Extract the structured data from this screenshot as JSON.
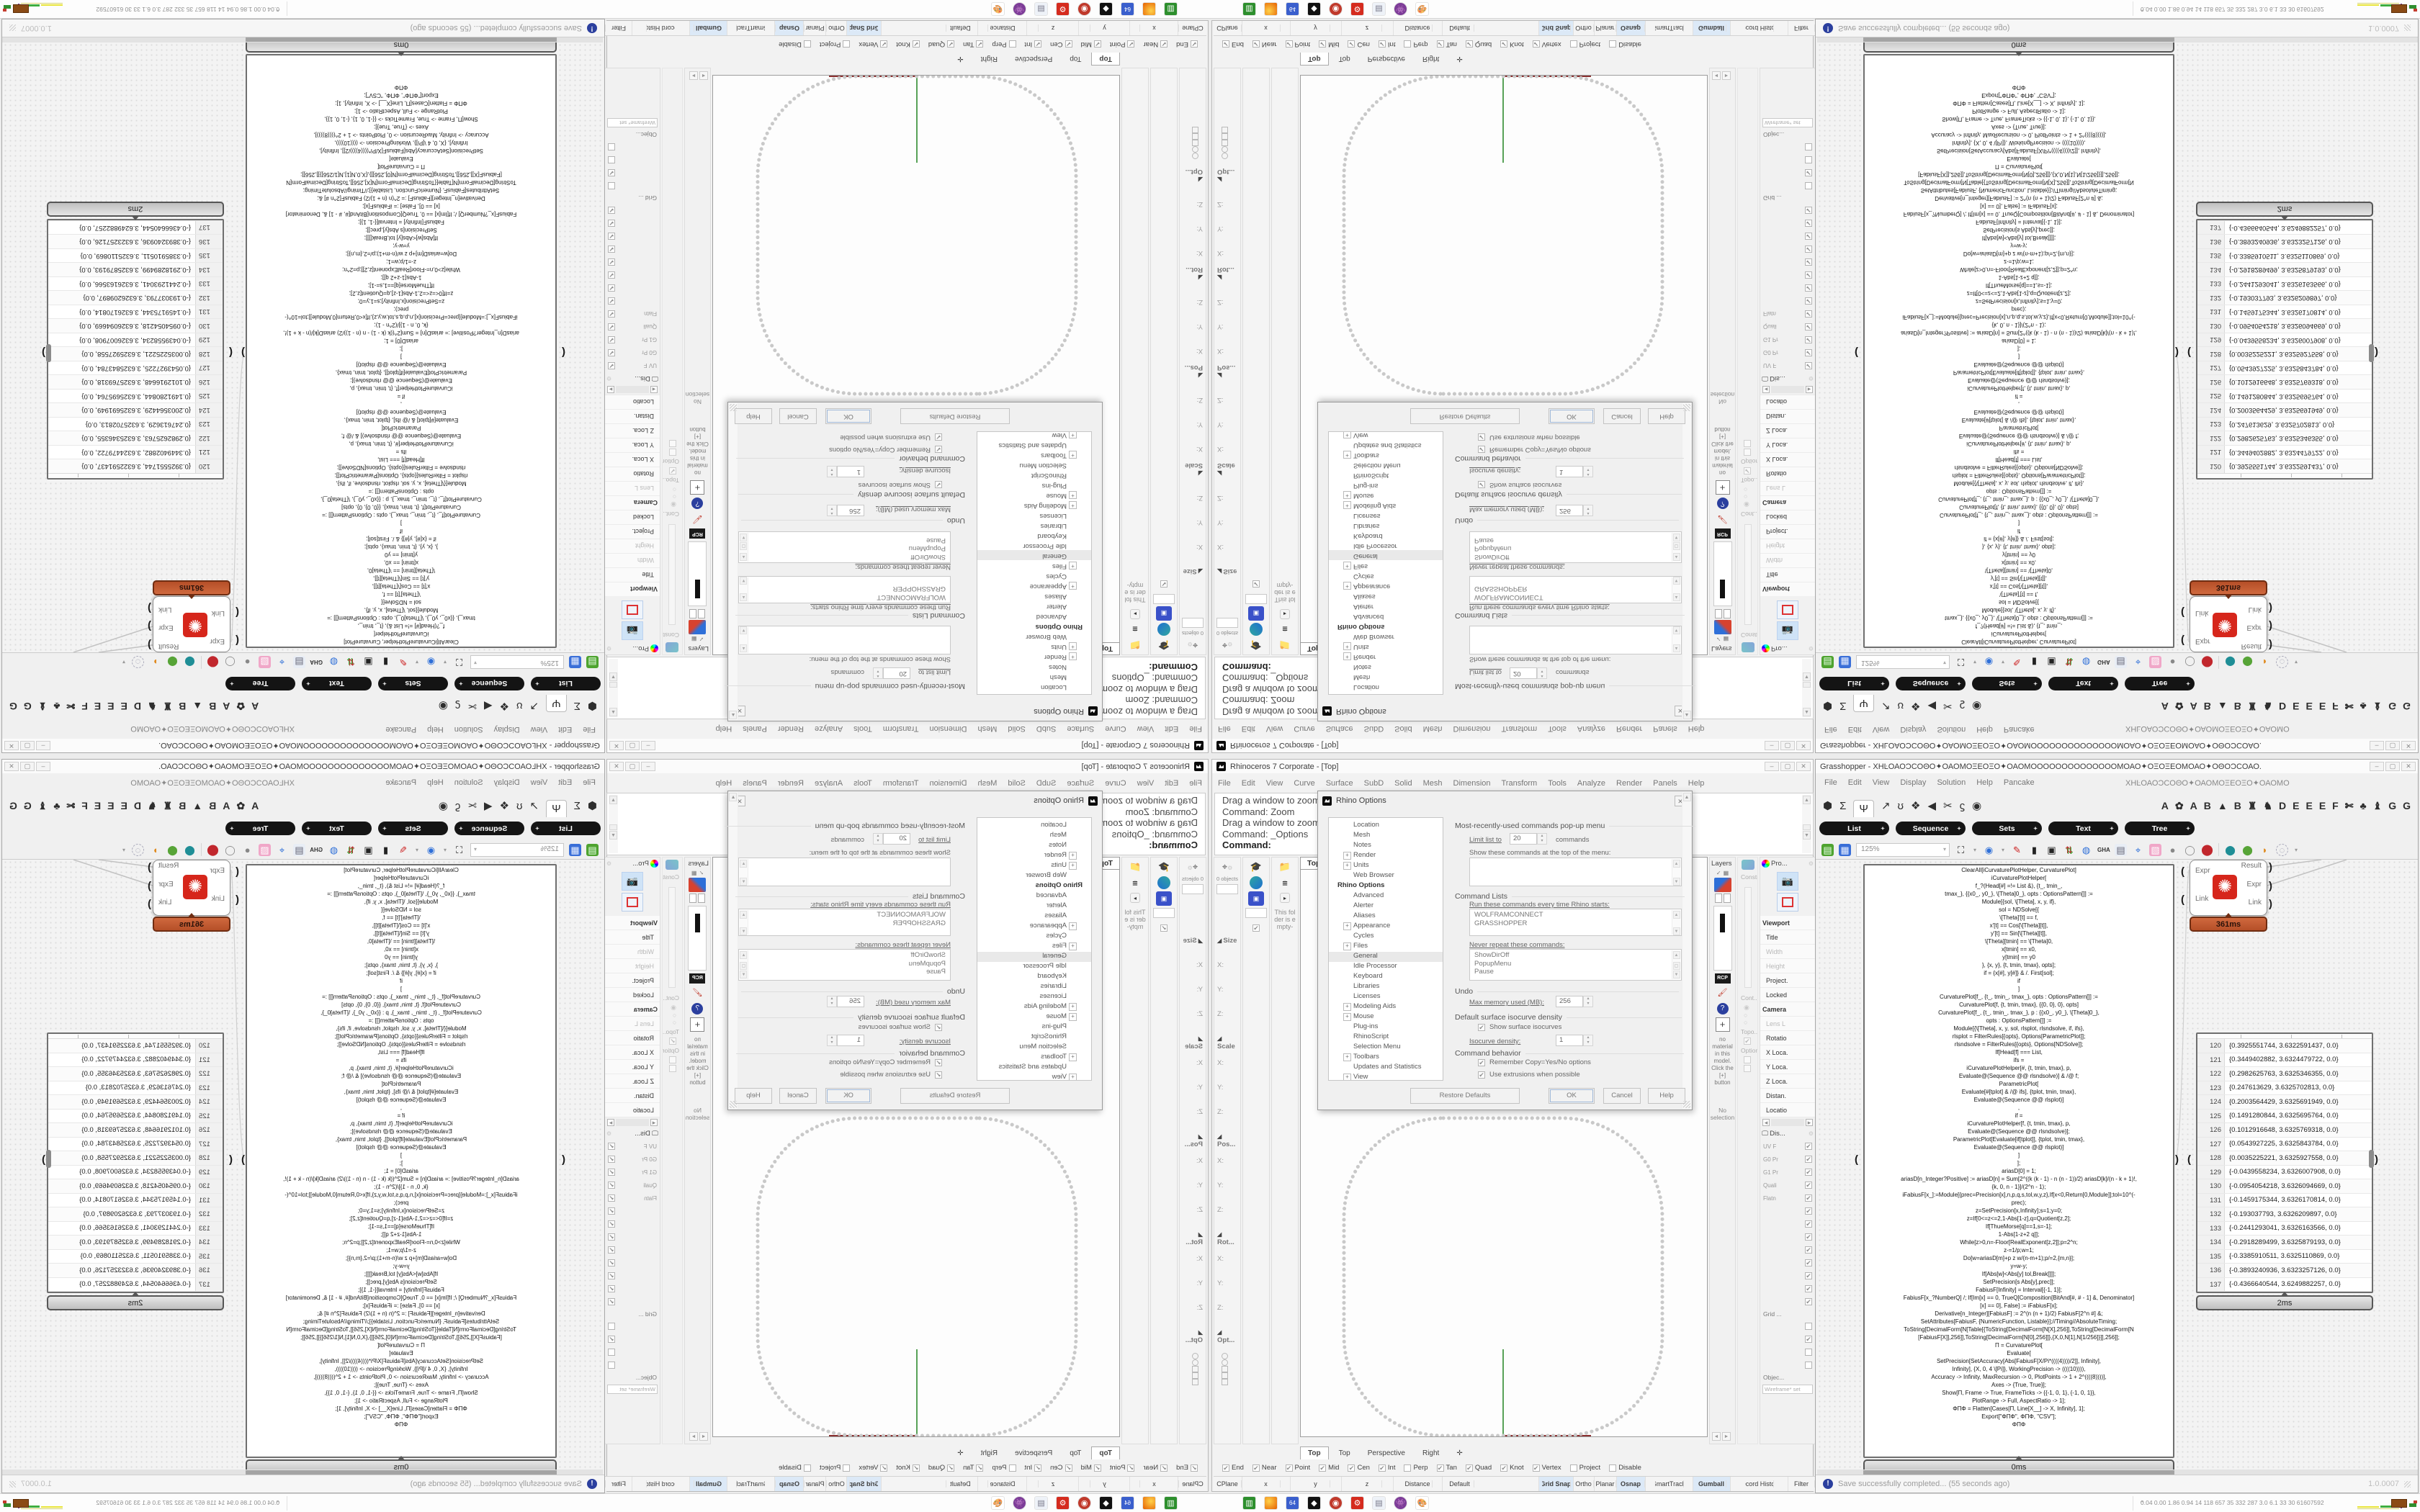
{
  "colors": {
    "accent_orange": "#c05a31",
    "wolfram_red": "#d6261b",
    "pill_black": "#141414",
    "status_highlight": "#dce9f7",
    "curve_gray": "#c9c9c9",
    "axis_green": "#2e8b2e",
    "axis_red": "#8a3030"
  },
  "rhino": {
    "title": "Rhinoceros 7 Corporate - [Top]",
    "menus": [
      "File",
      "Edit",
      "View",
      "Curve",
      "Surface",
      "SubD",
      "Solid",
      "Mesh",
      "Dimension",
      "Transform",
      "Tools",
      "Analyze",
      "Render",
      "Panels",
      "Help"
    ],
    "command_lines": [
      {
        "t": "Drag a window to zoom ("
      },
      {
        "t": "Command: Zoom"
      },
      {
        "t": "Drag a window to zoom ("
      },
      {
        "t": "Command: _Options"
      },
      {
        "t": "Command:",
        "c": "b"
      }
    ],
    "dock": {
      "objects_label": "0 objects",
      "folder_text": "This folder is empty-",
      "boxedit": [
        {
          "t": "Size",
          "c": "hd"
        },
        {
          "t": "X:"
        },
        {
          "t": "Y:"
        },
        {
          "t": "Z:"
        },
        {
          "t": "Scale",
          "c": "hd"
        },
        {
          "t": "X:"
        },
        {
          "t": "Y:"
        },
        {
          "t": "Z:"
        },
        {
          "t": "Pos...",
          "c": "hd"
        },
        {
          "t": "X:"
        },
        {
          "t": "Y:"
        },
        {
          "t": "Z:"
        },
        {
          "t": "Rot...",
          "c": "hd"
        },
        {
          "t": "X:"
        },
        {
          "t": "Y:"
        },
        {
          "t": "Z:"
        },
        {
          "t": "Opt...",
          "c": "hd"
        },
        {
          "t": "",
          "c": "rad"
        },
        {
          "t": "",
          "c": "rad"
        },
        {
          "t": "",
          "c": "bx"
        },
        {
          "t": "",
          "c": "bx"
        },
        {
          "t": "",
          "c": "bx"
        }
      ]
    },
    "viewport": {
      "label": "Top"
    },
    "viewport_tabs": [
      {
        "t": "Top",
        "c": "act"
      },
      {
        "t": "Top"
      },
      {
        "t": "Perspective"
      },
      {
        "t": "Right"
      },
      {
        "t": "✛"
      }
    ],
    "osnap": [
      {
        "t": "End",
        "on": 1
      },
      {
        "t": "Near",
        "on": 1
      },
      {
        "t": "Point",
        "on": 1
      },
      {
        "t": "Mid",
        "on": 1
      },
      {
        "t": "Cen",
        "on": 1
      },
      {
        "t": "Int",
        "on": 1
      },
      {
        "t": "Perp"
      },
      {
        "t": "Tan",
        "on": 1
      },
      {
        "t": "Quad",
        "on": 1
      },
      {
        "t": "Knot",
        "on": 1
      },
      {
        "t": "Vertex",
        "on": 1
      },
      {
        "t": "Project"
      },
      {
        "t": "Disable"
      }
    ],
    "status_cells": [
      {
        "t": "CPlane"
      },
      {
        "t": "x"
      },
      {
        "t": "y"
      },
      {
        "t": "z"
      },
      {
        "t": "Distance"
      },
      {
        "t": "Default",
        "c": "def"
      },
      {
        "t": "Grid Snap",
        "c": "hl"
      },
      {
        "t": "Ortho"
      },
      {
        "t": "Planar"
      },
      {
        "t": "Osnap",
        "c": "hl"
      },
      {
        "t": "SmartTrack"
      },
      {
        "t": "Gumball",
        "c": "hl"
      },
      {
        "t": "Record History"
      },
      {
        "t": "Filter"
      }
    ],
    "panels": {
      "layers_title": "Layers",
      "props_title": "Pro...",
      "display_title": "Dis...",
      "constr": "Constr...",
      "cont": "Cont...",
      "topo": "Topo...",
      "option": "Option...",
      "no_material": "no material in this model. Click the [+] button",
      "no_selection": "No selection",
      "grid_label": "Grid ...",
      "object_label": "Objec...",
      "wireframe": "Wireframe* set",
      "rcp": "RCP",
      "prop_items": [
        {
          "t": "Viewport",
          "c": "b"
        },
        {
          "t": "Title"
        },
        {
          "t": "Width",
          "c": "g"
        },
        {
          "t": "Height",
          "c": "g"
        },
        {
          "t": "Project."
        },
        {
          "t": "Locked"
        },
        {
          "t": "Camera",
          "c": "b"
        },
        {
          "t": "Lens L",
          "c": "g"
        },
        {
          "t": "Rotatio"
        },
        {
          "t": "X Loca."
        },
        {
          "t": "Y Loca."
        },
        {
          "t": "Z Loca."
        },
        {
          "t": "Distan."
        },
        {
          "t": "Locatio"
        }
      ],
      "display_rows": [
        {
          "t": "UV F",
          "on": 1
        },
        {
          "t": "G0 Pr",
          "on": 1
        },
        {
          "t": "G1 Pr",
          "on": 1
        },
        {
          "t": "Quali",
          "on": 1
        },
        {
          "t": "Flatn",
          "on": 1
        },
        {
          "t": "",
          "on": 1
        },
        {
          "t": "",
          "on": 1
        },
        {
          "t": "",
          "on": 1
        },
        {
          "t": "",
          "on": 1
        },
        {
          "t": "",
          "on": 1
        },
        {
          "t": "",
          "on": 1
        },
        {
          "t": "",
          "on": 1
        },
        {
          "t": "",
          "on": 1
        }
      ],
      "grid_boxes": [
        {
          "t": ""
        },
        {
          "t": "",
          "on": 1
        },
        {
          "t": ""
        },
        {
          "t": ""
        }
      ]
    }
  },
  "dialog": {
    "title": "Rhino Options",
    "tree": [
      {
        "t": "Location"
      },
      {
        "t": "Mesh"
      },
      {
        "t": "Notes"
      },
      {
        "t": "Render",
        "c": "plus"
      },
      {
        "t": "Units",
        "c": "plus"
      },
      {
        "t": "Web Browser"
      },
      {
        "t": "Rhino Options",
        "c": "head"
      },
      {
        "t": "Advanced"
      },
      {
        "t": "Alerter"
      },
      {
        "t": "Aliases"
      },
      {
        "t": "Appearance",
        "c": "plus"
      },
      {
        "t": "Cycles"
      },
      {
        "t": "Files",
        "c": "plus"
      },
      {
        "t": "General",
        "c": "sel"
      },
      {
        "t": "Idle Processor"
      },
      {
        "t": "Keyboard"
      },
      {
        "t": "Libraries"
      },
      {
        "t": "Licenses"
      },
      {
        "t": "Modeling Aids",
        "c": "plus"
      },
      {
        "t": "Mouse",
        "c": "plus"
      },
      {
        "t": "Plug-ins"
      },
      {
        "t": "RhinoScript"
      },
      {
        "t": "Selection Menu"
      },
      {
        "t": "Toolbars",
        "c": "plus"
      },
      {
        "t": "Updates and Statistics"
      },
      {
        "t": "View",
        "c": "plus"
      }
    ],
    "mru_header": "Most-recently-used commands pop-up menu",
    "limit_label": "Limit list to",
    "limit_value": "20",
    "limit_suffix": "commands",
    "show_label": "Show these commands at the top of the menu:",
    "cmdlists_header": "Command Lists",
    "run_label": "Run these commands every time Rhino starts:",
    "run_items": [
      {
        "t": "WOLFRAMCONNECT"
      },
      {
        "t": "GRASSHOPPER"
      }
    ],
    "never_label": "Never repeat these commands:",
    "never_items": [
      {
        "t": "ShowDirOff"
      },
      {
        "t": "PopupMenu"
      },
      {
        "t": "Pause"
      }
    ],
    "undo_header": "Undo",
    "mem_label": "Max memory used (MB):",
    "mem_value": "256",
    "iso_header": "Default surface isocurve density",
    "iso_cb": "Show surface isocurves",
    "iso_label": "Isocurve density:",
    "iso_value": "1",
    "beh_header": "Command behavior",
    "beh_cb1": "Remember Copy=Yes/No options",
    "beh_cb2": "Use extrusions when possible",
    "btn_restore": "Restore Defaults",
    "btn_ok": "OK",
    "btn_cancel": "Cancel",
    "btn_help": "Help"
  },
  "gh": {
    "title": "Grasshopper - XHĿΟΑΟϽCΟΘΟ✦ΟΑΟΜΟΞΕΟΞΟ✦ΟΑΟΜΟΟΟΟΟΟΟΟΟΟΟΟΟΟΜΟΑΟ✦ΟΞΟΞΕΟΜΟΑΟ✦ΟΘΟϽCΟΑΟ.",
    "menus": [
      "File",
      "Edit",
      "View",
      "Display",
      "Solution",
      "Help",
      "Pancake"
    ],
    "title_right": "XHĿΟΑΟϽCΟΘΟ✦ΟΑΟΜΟΞΕΟΞΟ✦ΟΑΟΜΟ",
    "palette_left": [
      {
        "t": "⬢"
      },
      {
        "t": "Σ"
      },
      {
        "t": "Ψ",
        "c": "tab"
      },
      {
        "t": "↗"
      },
      {
        "t": "ʊ"
      },
      {
        "t": "❖"
      },
      {
        "t": "◀"
      },
      {
        "t": "✂"
      },
      {
        "t": "ϛ"
      },
      {
        "t": "◉"
      }
    ],
    "palette_right": [
      {
        "t": "A"
      },
      {
        "t": "✿"
      },
      {
        "t": "A"
      },
      {
        "t": "B"
      },
      {
        "t": "▲"
      },
      {
        "t": "B"
      },
      {
        "t": "♜"
      },
      {
        "t": "♞"
      },
      {
        "t": "D"
      },
      {
        "t": "E"
      },
      {
        "t": "E"
      },
      {
        "t": "E"
      },
      {
        "t": "F"
      },
      {
        "t": "✄"
      },
      {
        "t": "♣"
      },
      {
        "t": "♝"
      },
      {
        "t": "G"
      },
      {
        "t": "G"
      }
    ],
    "pills": [
      {
        "t": "List"
      },
      {
        "t": "Sequence"
      },
      {
        "t": "Sets"
      },
      {
        "t": "Text"
      },
      {
        "t": "Tree"
      }
    ],
    "zoom": "125%",
    "toolbar": [
      {
        "t": "▤",
        "c": "ic-green",
        "n": "open-file-icon"
      },
      {
        "t": "▦",
        "c": "ic-blue",
        "n": "save-icon"
      }
    ],
    "toolbar2": [
      {
        "t": "⛶",
        "c": "ic-dark",
        "n": "zoom-extents-icon"
      },
      {
        "t": "▾",
        "c": "caret",
        "n": "caret-icon"
      },
      {
        "t": "◉",
        "c": "ic-blue2",
        "n": "preview-eye-icon"
      },
      {
        "t": "▾",
        "c": "caret",
        "n": "caret-icon"
      },
      {
        "t": "✎",
        "c": "ic-red",
        "n": "sketch-icon"
      },
      {
        "t": "▮",
        "c": "ic-dark",
        "n": "projector-icon"
      },
      {
        "t": "▣",
        "c": "ic-dark",
        "n": "speaker-icon"
      },
      {
        "t": "⇅",
        "c": "ic-rg",
        "n": "remote-icon"
      },
      {
        "t": "◍",
        "c": "ic-blue2",
        "n": "cd-icon"
      },
      {
        "t": "GHA",
        "c": "ic-txt",
        "n": "gha-icon"
      },
      {
        "t": "▤",
        "c": "ic-note",
        "n": "notes-icon"
      },
      {
        "t": "⌖",
        "c": "ic-blue2",
        "n": "finder-icon"
      },
      {
        "t": "▧",
        "c": "ic-pink",
        "n": "package-icon"
      },
      {
        "t": "●",
        "c": "ic-gray",
        "n": "clam-icon"
      },
      {
        "t": "◯",
        "c": "ic-gray",
        "n": "ring-icon"
      },
      {
        "t": "⬤",
        "c": "ic-redbig",
        "n": "pot-icon"
      },
      {
        "t": "|",
        "c": "sep"
      },
      {
        "t": "⬤",
        "c": "ic-teal",
        "n": "pin-teal-icon"
      },
      {
        "t": "⬤",
        "c": "ic-grn",
        "n": "pin-green-icon"
      },
      {
        "t": "◗",
        "c": "ic-org",
        "n": "ball-icon"
      },
      {
        "t": "◌",
        "c": "ic-dash",
        "n": "selection-icon"
      },
      {
        "t": "▾",
        "c": "caret",
        "n": "caret-icon"
      }
    ],
    "component": {
      "in1": "Expr",
      "in2": "Link",
      "out1": "Result",
      "out2": "Expr",
      "out3": "Link",
      "time": "361ms"
    },
    "code_time": "0ms",
    "table_time": "2ms",
    "status": "Save successfully completed... (55 seconds ago)",
    "version": "1.0.0007",
    "code_lines": [
      {
        "t": "ClearAll[iCurvaturePlotHelper, CurvaturePlot]"
      },
      {
        "t": "iCurvaturePlotHelper["
      },
      {
        "t": "f_?(Head[#] =!= List &), {t_, tmin_,"
      },
      {
        "t": "tmax_}, {{x0_, y0_}, \\[Theta]0_}, opts : OptionsPattern[]] :="
      },
      {
        "t": "Module[{sol, \\[Theta], x, y, if},"
      },
      {
        "t": "sol = NDSolve[{"
      },
      {
        "t": "\\[Theta]'[t] == f,"
      },
      {
        "t": "x'[t] == Cos[\\[Theta][t]],"
      },
      {
        "t": "y'[t] == Sin[\\[Theta][t]],"
      },
      {
        "t": "\\[Theta][tmin] == \\[Theta]0,"
      },
      {
        "t": "x[tmin] == x0,"
      },
      {
        "t": "y[tmin] == y0"
      },
      {
        "t": "}, {x, y}, {t, tmin, tmax}, opts];"
      },
      {
        "t": "if = {x[#], y[#]} & /. First[sol];"
      },
      {
        "t": "if"
      },
      {
        "t": "]"
      },
      {
        "t": ""
      },
      {
        "t": "CurvaturePlot[f_, {t_, tmin_, tmax_}, opts : OptionsPattern[]] :="
      },
      {
        "t": "CurvaturePlot[f, {t, tmin, tmax}, {{0, 0}, 0}, opts]"
      },
      {
        "t": "CurvaturePlot[f_, {t_, tmin_, tmax_}, p : {{x0_, y0_}, \\[Theta]0_},"
      },
      {
        "t": "opts : OptionsPattern[]] :="
      },
      {
        "t": "Module[{\\[Theta], x, y, sol, rlsplot, rlsndsolve, if, ifs},"
      },
      {
        "t": "rlsplot = FilterRules[{opts}, Options[ParametricPlot]];"
      },
      {
        "t": "rlsndsolve = FilterRules[{opts}, Options[NDSolve]];"
      },
      {
        "t": "If[Head[f] === List,"
      },
      {
        "t": "ifs ="
      },
      {
        "t": "iCurvaturePlotHelper[#, {t, tmin, tmax}, p,"
      },
      {
        "t": "Evaluate@(Sequence @@ rlsndsolve)] & /@ f;"
      },
      {
        "t": "ParametricPlot["
      },
      {
        "t": "Evaluate[#[tplot] & /@ ifs], {tplot, tmin, tmax},"
      },
      {
        "t": "Evaluate@(Sequence @@ rlsplot)]"
      },
      {
        "t": ","
      },
      {
        "t": "if ="
      },
      {
        "t": "iCurvaturePlotHelper[f, {t, tmin, tmax}, p,"
      },
      {
        "t": "Evaluate@(Sequence @@ rlsndsolve)];"
      },
      {
        "t": "ParametricPlot[Evaluate[if[tplot]], {tplot, tmin, tmax},"
      },
      {
        "t": "Evaluate@(Sequence @@ rlsplot)]"
      },
      {
        "t": "]"
      },
      {
        "t": "];"
      },
      {
        "t": ""
      },
      {
        "t": "ariasD[0] = 1;"
      },
      {
        "t": "ariasD[n_Integer?Positive] := ariasD[n] = Sum[2^((k (k - 1) - n (n - 1))/2) ariasD[k]/(n - k + 1)!,"
      },
      {
        "t": "{k, 0, n - 1}]/(2^n - 1);"
      },
      {
        "t": "iFabiusF[x_]:=Module[{prec=Precision[x],n,p,q,s,tol,w,y,z},If[x<0,Return[0,Module]];tol=10^(-"
      },
      {
        "t": "prec);"
      },
      {
        "t": "z=SetPrecision[x,Infinity];s=1;y=0;"
      },
      {
        "t": "z=If[0<=z<=2,1-Abs[1-z],q=Quotient[z,2];"
      },
      {
        "t": "If[ThueMorse[q]==1,s=-1];"
      },
      {
        "t": "1-Abs[1-z+2 q]];"
      },
      {
        "t": "While[z>0,n=-Floor[RealExponent[z,2]];p=2^n;"
      },
      {
        "t": "z-=1/p;w=1;"
      },
      {
        "t": "Do[w=ariasD[m]+p z w/(n-m+1);p/=2,{m,n}];"
      },
      {
        "t": "y=w-y;"
      },
      {
        "t": "If[Abs[w]<Abs[y] tol,Break[]]];"
      },
      {
        "t": "SetPrecision[s Abs[y],prec]];"
      },
      {
        "t": "FabiusF[Infinity] = Interval[{-1, 1}];"
      },
      {
        "t": "FabiusF[x_?NumberQ] /; If[Im[x] == 0, TrueQ[Composition[BitAnd[#, # - 1] &, Denominator]"
      },
      {
        "t": "[x] == 0], False] := iFabiusF[x];"
      },
      {
        "t": "Derivative[n_Integer][FabiusF] := 2^(n (n + 1)/2) FabiusF[2^n #] &;"
      },
      {
        "t": "SetAttributes[FabiusF, {NumericFunction, Listable}];//Timing//AbsoluteTiming;"
      },
      {
        "t": ""
      },
      {
        "t": "ToString[DecimalForm[N[Table[{ToString[DecimalForm[N[X],256]],ToString[DecimalForm[N"
      },
      {
        "t": "[FabiusF[X]],256]],ToString[DecimalForm[N[0],256]]},{X,0,N[1],N[1/256]}]],256]];"
      },
      {
        "t": ""
      },
      {
        "t": "Π = CurvaturePlot["
      },
      {
        "t": "Evaluate["
      },
      {
        "t": "SetPrecision[SetAccuracy[Abs[FabiusF[X/Pi*((((4))))/2]], Infinity],"
      },
      {
        "t": "Infinity], {X, 0, 4 \\[Pi]}, WorkingPrecision -> ((((10)))),"
      },
      {
        "t": "Accuracy -> Infinity, MaxRecursion -> 0, PlotPoints -> 1 + 2^((((8))))],"
      },
      {
        "t": "Axes -> {True, True}];"
      },
      {
        "t": "Show[Π, Frame -> True, FrameTicks -> {{-1, 0, 1}, {-1, 0, 1}},"
      },
      {
        "t": "PlotRange -> Full, AspectRatio -> 1];"
      },
      {
        "t": "ΦΠΦ = Flatten[Cases[Π, Line[X__] -> X, Infinity], 1];"
      },
      {
        "t": "Export[\"ΦΠΦ\", ΦΠΦ, \"CSV\"];"
      },
      {
        "t": "ΦΠΦ"
      }
    ],
    "table_rows": [
      {
        "i": "120",
        "v": "{0.3925551744, 3.6322591437, 0.0}"
      },
      {
        "i": "121",
        "v": "{0.3449402882, 3.6324479722, 0.0}"
      },
      {
        "i": "122",
        "v": "{0.2982625763, 3.6325346355, 0.0}"
      },
      {
        "i": "123",
        "v": "{0.247613629, 3.6325702813, 0.0}"
      },
      {
        "i": "124",
        "v": "{0.2003564429, 3.6325691949, 0.0}"
      },
      {
        "i": "125",
        "v": "{0.1491280844, 3.6325695764, 0.0}"
      },
      {
        "i": "126",
        "v": "{0.1012916648, 3.6325769318, 0.0}"
      },
      {
        "i": "127",
        "v": "{0.0543927225, 3.6325843784, 0.0}"
      },
      {
        "i": "128",
        "v": "{0.0035225221, 3.6325927558, 0.0}"
      },
      {
        "i": "129",
        "v": "{-0.0439558234, 3.6326007908, 0.0}"
      },
      {
        "i": "130",
        "v": "{-0.0954054218, 3.6326094669, 0.0}"
      },
      {
        "i": "131",
        "v": "{-0.1459175344, 3.6326170814, 0.0}"
      },
      {
        "i": "132",
        "v": "{-0.193037793, 3.6326209897, 0.0}"
      },
      {
        "i": "133",
        "v": "{-0.2441293041, 3.6326163566, 0.0}"
      },
      {
        "i": "134",
        "v": "{-0.2918289499, 3.6325879193, 0.0}"
      },
      {
        "i": "135",
        "v": "{-0.3385910511, 3.6325110869, 0.0}"
      },
      {
        "i": "136",
        "v": "{-0.3893240936, 3.6323257126, 0.0}"
      },
      {
        "i": "137",
        "v": "{-0.4366640544, 3.6249882257, 0.0}"
      }
    ]
  },
  "taskbar": {
    "ticker": "0.04 0.00 1.86 0.94   14   118  657   35   332  287  3.0  6.1   33   30  61607592",
    "chevron": "⌃"
  }
}
